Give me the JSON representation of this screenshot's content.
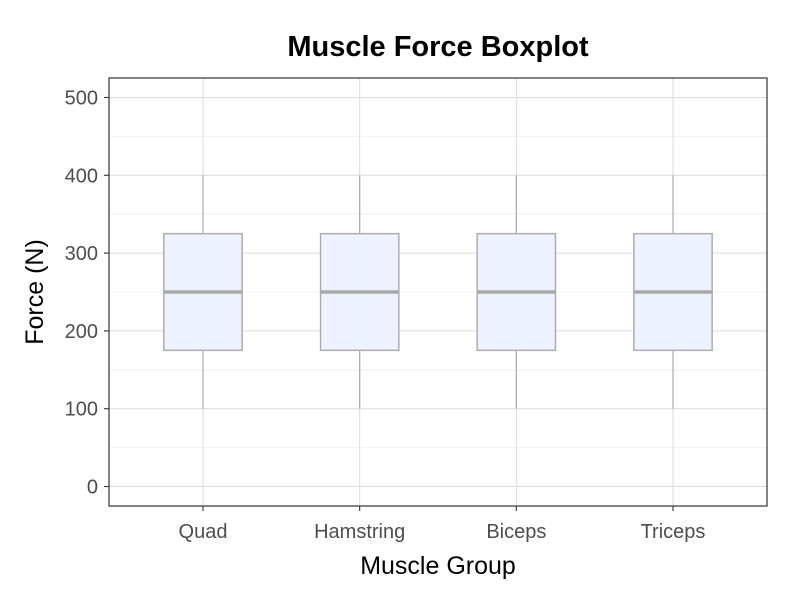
{
  "chart_data": {
    "type": "boxplot",
    "title": "Muscle Force Boxplot",
    "xlabel": "Muscle Group",
    "ylabel": "Force (N)",
    "categories": [
      "Quad",
      "Hamstring",
      "Biceps",
      "Triceps"
    ],
    "boxes": [
      {
        "category": "Quad",
        "min": 100,
        "q1": 175,
        "median": 250,
        "q3": 325,
        "max": 400
      },
      {
        "category": "Hamstring",
        "min": 100,
        "q1": 175,
        "median": 250,
        "q3": 325,
        "max": 400
      },
      {
        "category": "Biceps",
        "min": 100,
        "q1": 175,
        "median": 250,
        "q3": 325,
        "max": 400
      },
      {
        "category": "Triceps",
        "min": 100,
        "q1": 175,
        "median": 250,
        "q3": 325,
        "max": 400
      }
    ],
    "ylim": [
      -25,
      525
    ],
    "yticks": [
      0,
      100,
      200,
      300,
      400,
      500
    ],
    "ytick_labels": [
      "0",
      "100",
      "200",
      "300",
      "400",
      "500"
    ],
    "grid": true,
    "legend": "none",
    "colors": {
      "box_fill": "#eef2ff",
      "box_stroke": "#a9a9a9",
      "median_line": "#a9a9a9",
      "whisker": "#a9a9a9",
      "grid_major": "#dcdcdc",
      "grid_minor": "#efefef",
      "panel_border": "#333333"
    }
  }
}
